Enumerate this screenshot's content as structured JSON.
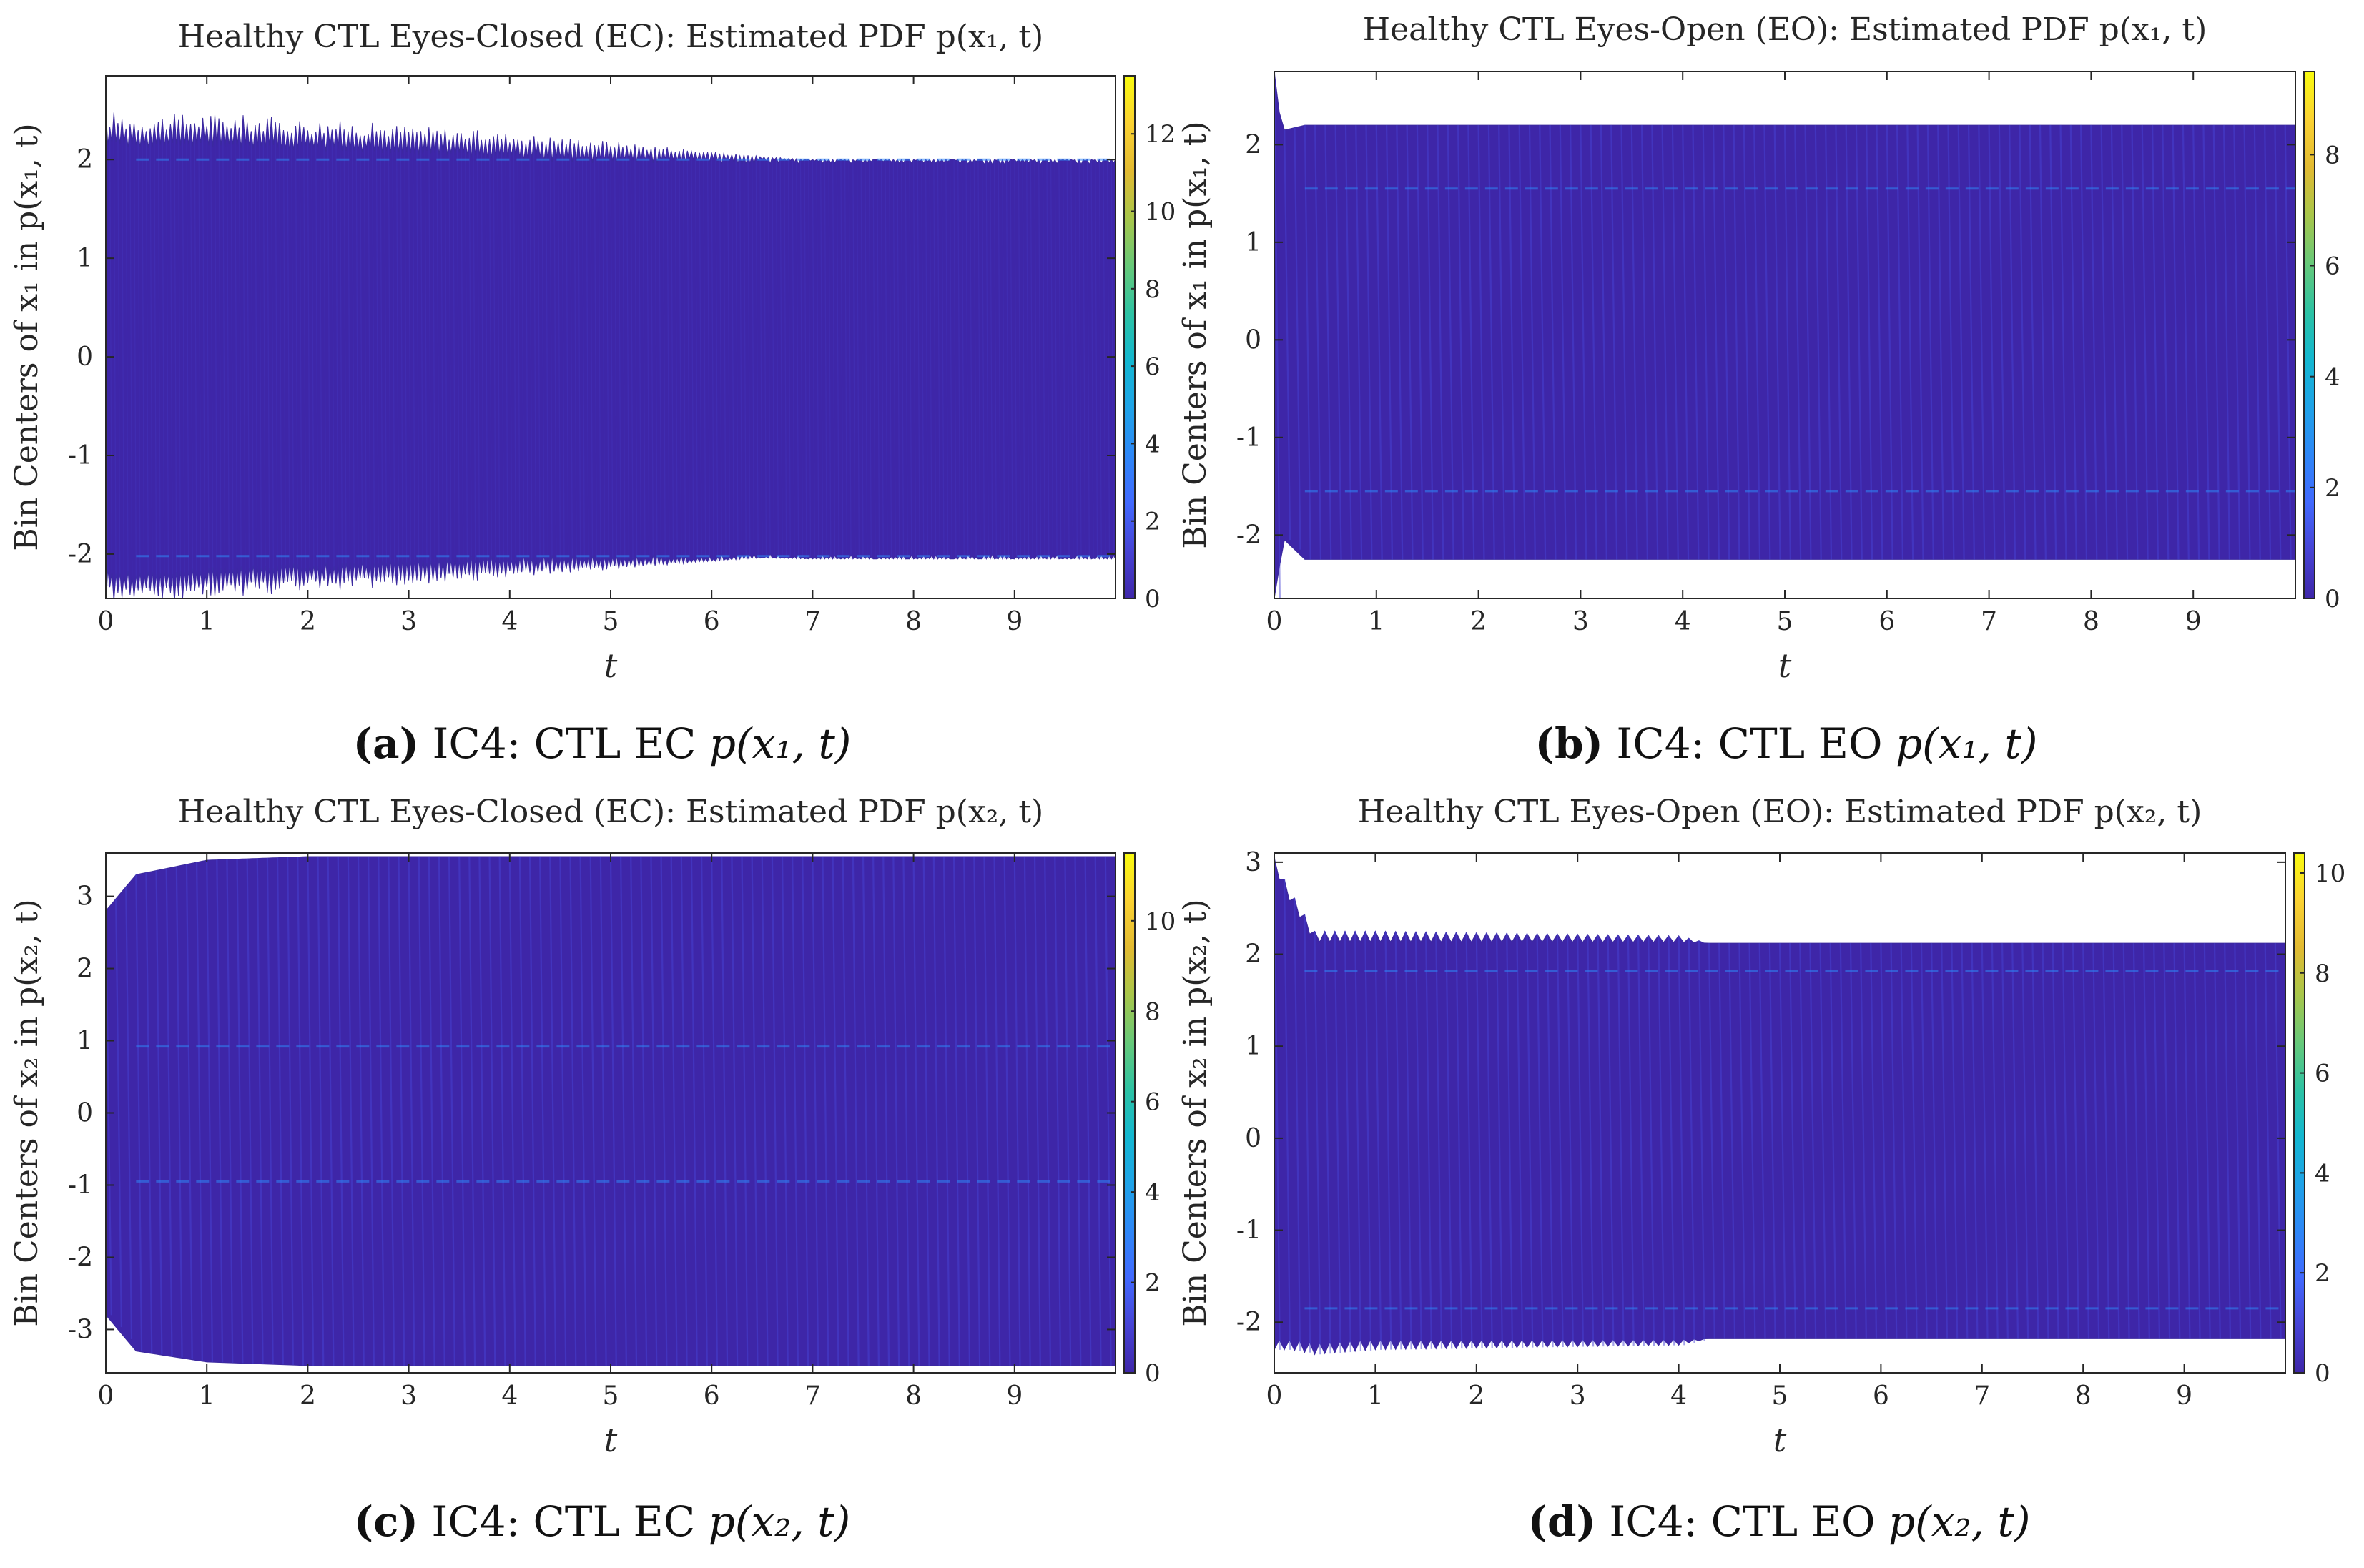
{
  "figure": {
    "background": "#ffffff"
  },
  "colormap": [
    "#3e26a8",
    "#4743d4",
    "#4269fe",
    "#2e87f7",
    "#1fa3e8",
    "#13b7d0",
    "#2dc2a3",
    "#67c979",
    "#a8c64a",
    "#e2ba31",
    "#fbd232",
    "#f9fb0e"
  ],
  "chart_data": [
    {
      "id": "a",
      "type": "heatmap",
      "title": "Healthy CTL Eyes-Closed (EC): Estimated PDF p(x₁, t)",
      "xlabel": "t",
      "ylabel": "Bin Centers of x₁ in p(x₁, t)",
      "xlim": [
        0,
        10
      ],
      "ylim": [
        -2.45,
        2.85
      ],
      "xticks": [
        0,
        1,
        2,
        3,
        4,
        5,
        6,
        7,
        8,
        9
      ],
      "yticks": [
        -2,
        -1,
        0,
        1,
        2
      ],
      "colorbar_range": [
        0,
        13.5
      ],
      "colorbar_ticks": [
        0,
        2,
        4,
        6,
        8,
        10,
        12
      ],
      "support_envelope": {
        "t": [
          0,
          0.3,
          1,
          3,
          5,
          6.5,
          7,
          10
        ],
        "upper": [
          2.32,
          2.28,
          2.3,
          2.22,
          2.12,
          2.02,
          2.0,
          2.0
        ],
        "lower": [
          -2.32,
          -2.35,
          -2.3,
          -2.22,
          -2.12,
          -2.04,
          -2.05,
          -2.05
        ]
      },
      "pattern": {
        "mode": "dense",
        "oscillation_cycles": 250,
        "ridge_levels": [
          2.0,
          -2.02
        ]
      },
      "caption": {
        "label": "(a)",
        "text": " IC4: CTL EC ",
        "math": "p(x₁, t)"
      }
    },
    {
      "id": "b",
      "type": "heatmap",
      "title": "Healthy CTL Eyes-Open (EO): Estimated PDF p(x₁, t)",
      "xlabel": "t",
      "ylabel": "Bin Centers of x₁ in p(x₁, t)",
      "xlim": [
        0,
        10
      ],
      "ylim": [
        -2.65,
        2.75
      ],
      "xticks": [
        0,
        1,
        2,
        3,
        4,
        5,
        6,
        7,
        8,
        9
      ],
      "yticks": [
        -2,
        -1,
        0,
        1,
        2
      ],
      "colorbar_range": [
        0,
        9.5
      ],
      "colorbar_ticks": [
        0,
        2,
        4,
        6,
        8
      ],
      "support_envelope": {
        "t": [
          0,
          0.05,
          0.1,
          0.3,
          1,
          10
        ],
        "upper": [
          2.75,
          2.45,
          2.15,
          2.2,
          2.2,
          2.2
        ],
        "lower": [
          -2.65,
          -2.45,
          -2.05,
          -2.25,
          -2.25,
          -2.25
        ]
      },
      "pattern": {
        "mode": "striped",
        "oscillation_cycles": 100,
        "ridge_levels": [
          1.55,
          -1.55
        ]
      },
      "caption": {
        "label": "(b)",
        "text": " IC4: CTL EO ",
        "math": "p(x₁, t)"
      }
    },
    {
      "id": "c",
      "type": "heatmap",
      "title": "Healthy CTL Eyes-Closed (EC): Estimated PDF p(x₂, t)",
      "xlabel": "t",
      "ylabel": "Bin Centers of x₂ in p(x₂, t)",
      "xlim": [
        0,
        10
      ],
      "ylim": [
        -3.6,
        3.6
      ],
      "xticks": [
        0,
        1,
        2,
        3,
        4,
        5,
        6,
        7,
        8,
        9
      ],
      "yticks": [
        -3,
        -2,
        -1,
        0,
        1,
        2,
        3
      ],
      "colorbar_range": [
        0,
        11.5
      ],
      "colorbar_ticks": [
        0,
        2,
        4,
        6,
        8,
        10
      ],
      "support_envelope": {
        "t": [
          0,
          0.3,
          1,
          2,
          10
        ],
        "upper": [
          2.8,
          3.3,
          3.5,
          3.55,
          3.55
        ],
        "lower": [
          -2.8,
          -3.3,
          -3.45,
          -3.5,
          -3.5
        ]
      },
      "pattern": {
        "mode": "striped",
        "oscillation_cycles": 100,
        "ridge_levels": [
          0.92,
          -0.95
        ]
      },
      "caption": {
        "label": "(c)",
        "text": " IC4: CTL EC ",
        "math": "p(x₂, t)"
      }
    },
    {
      "id": "d",
      "type": "heatmap",
      "title": "Healthy CTL Eyes-Open (EO): Estimated PDF p(x₂, t)",
      "xlabel": "t",
      "ylabel": "Bin Centers of x₂ in p(x₂, t)",
      "xlim": [
        0,
        10
      ],
      "ylim": [
        -2.55,
        3.1
      ],
      "xticks": [
        0,
        1,
        2,
        3,
        4,
        5,
        6,
        7,
        8,
        9
      ],
      "yticks": [
        -2,
        -1,
        0,
        1,
        2,
        3
      ],
      "colorbar_range": [
        0,
        10.4
      ],
      "colorbar_ticks": [
        0,
        2,
        4,
        6,
        8,
        10
      ],
      "support_envelope": {
        "t": [
          0,
          0.15,
          0.4,
          1,
          4,
          4.3,
          10
        ],
        "upper": [
          3.05,
          2.7,
          2.25,
          2.25,
          2.2,
          2.12,
          2.12
        ],
        "lower": [
          -2.3,
          -2.3,
          -2.35,
          -2.3,
          -2.25,
          -2.18,
          -2.18
        ]
      },
      "pattern": {
        "mode": "striped",
        "oscillation_cycles": 100,
        "ridge_levels": [
          1.82,
          -1.85
        ]
      },
      "caption": {
        "label": "(d)",
        "text": " IC4: CTL EO ",
        "math": "p(x₂, t)"
      }
    }
  ]
}
